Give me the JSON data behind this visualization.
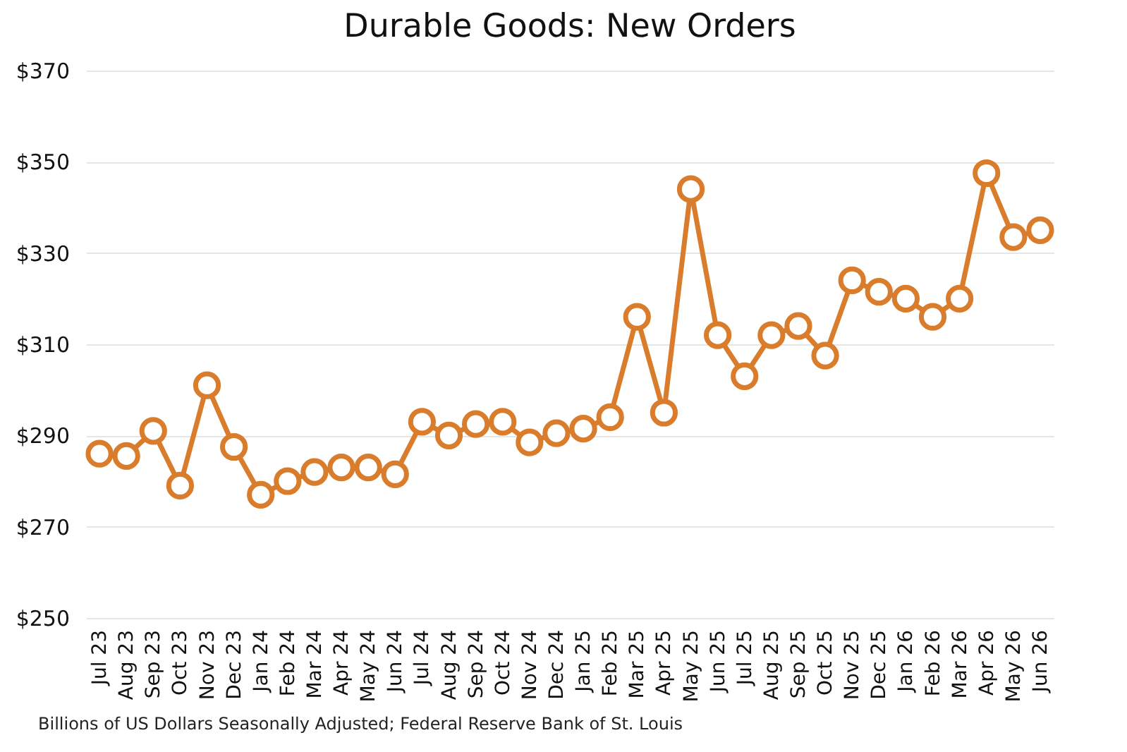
{
  "chart_data": {
    "type": "line",
    "title": "Durable Goods: New Orders",
    "categories": [
      "Jul 23",
      "Aug 23",
      "Sep 23",
      "Oct 23",
      "Nov 23",
      "Dec 23",
      "Jan 24",
      "Feb 24",
      "Mar 24",
      "Apr 24",
      "May 24",
      "Jun 24",
      "Jul 24",
      "Aug 24",
      "Sep 24",
      "Oct 24",
      "Nov 24",
      "Dec 24",
      "Jan 25",
      "Feb 25",
      "Mar 25",
      "Apr 25",
      "May 25",
      "Jun 25",
      "Jul 25",
      "Aug 25",
      "Sep 25",
      "Oct 25",
      "Nov 25",
      "Dec 25",
      "Jan 26",
      "Feb 26",
      "Mar 26",
      "Apr 26",
      "May 26",
      "Jun 26"
    ],
    "series": [
      {
        "color": "#d97c2b",
        "values": [
          286,
          285.5,
          291,
          279,
          301,
          287.5,
          277,
          280,
          282,
          283,
          283,
          281.5,
          293,
          290,
          292.5,
          293,
          288.5,
          290.5,
          291.5,
          294,
          316,
          295,
          344,
          312,
          303,
          312,
          314,
          307.5,
          324,
          321.5,
          320,
          316,
          320,
          347.5,
          333.5,
          335
        ]
      }
    ],
    "ylim": [
      250,
      370
    ],
    "yticks": [
      {
        "value": 250,
        "label": "$250"
      },
      {
        "value": 270,
        "label": "$270"
      },
      {
        "value": 290,
        "label": "$290"
      },
      {
        "value": 310,
        "label": "$310"
      },
      {
        "value": 330,
        "label": "$330"
      },
      {
        "value": 350,
        "label": "$350"
      },
      {
        "value": 370,
        "label": "$370"
      }
    ],
    "grid": "y",
    "marker": "circle",
    "line_style": "solid",
    "annotations": [
      "Billions of US Dollars Seasonally Adjusted; Federal Reserve Bank of St. Louis"
    ]
  }
}
